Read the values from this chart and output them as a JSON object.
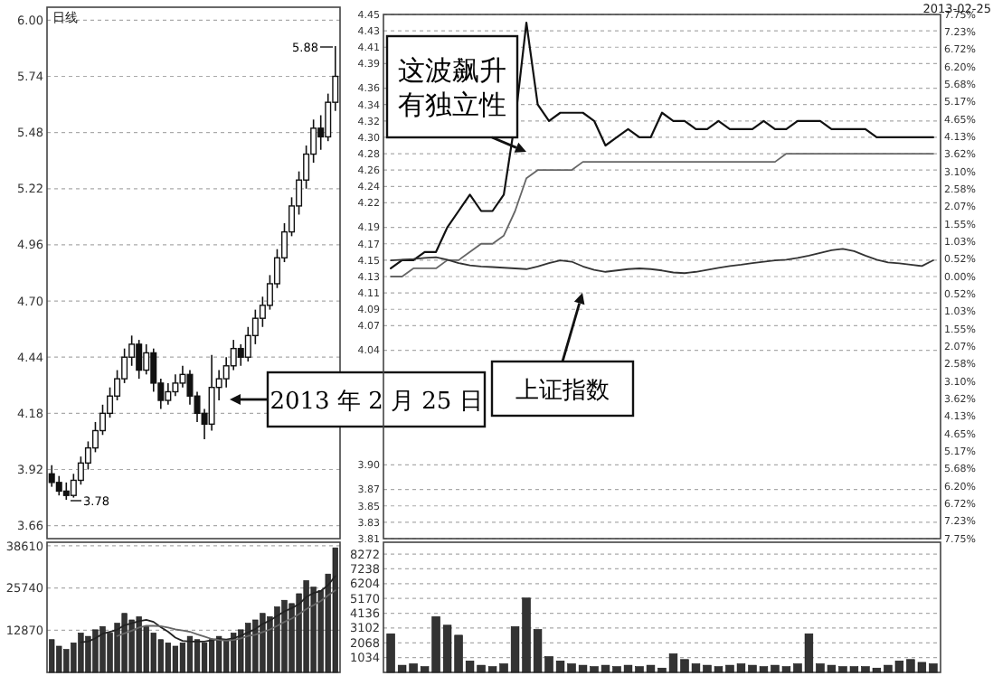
{
  "chart_data": [
    {
      "type": "candlestick",
      "title": "日线",
      "categories": [
        null,
        null,
        null,
        null,
        null,
        null,
        null,
        null,
        null,
        null,
        null,
        null,
        null,
        null,
        null,
        null,
        null,
        null,
        null,
        null,
        null,
        null,
        null,
        null,
        null,
        null,
        null,
        null,
        null,
        null,
        null,
        null,
        null,
        null,
        null,
        null,
        null,
        null,
        null,
        null
      ],
      "ohlc": [
        [
          3.9,
          3.94,
          3.84,
          3.86
        ],
        [
          3.86,
          3.89,
          3.8,
          3.82
        ],
        [
          3.82,
          3.86,
          3.78,
          3.8
        ],
        [
          3.8,
          3.9,
          3.79,
          3.87
        ],
        [
          3.87,
          3.98,
          3.85,
          3.95
        ],
        [
          3.95,
          4.05,
          3.92,
          4.02
        ],
        [
          4.02,
          4.14,
          4.0,
          4.1
        ],
        [
          4.1,
          4.22,
          4.08,
          4.18
        ],
        [
          4.18,
          4.3,
          4.16,
          4.26
        ],
        [
          4.26,
          4.38,
          4.24,
          4.34
        ],
        [
          4.34,
          4.48,
          4.32,
          4.44
        ],
        [
          4.44,
          4.54,
          4.4,
          4.5
        ],
        [
          4.5,
          4.52,
          4.34,
          4.38
        ],
        [
          4.38,
          4.5,
          4.36,
          4.46
        ],
        [
          4.46,
          4.48,
          4.28,
          4.32
        ],
        [
          4.32,
          4.34,
          4.2,
          4.24
        ],
        [
          4.24,
          4.32,
          4.22,
          4.28
        ],
        [
          4.28,
          4.36,
          4.26,
          4.32
        ],
        [
          4.32,
          4.4,
          4.3,
          4.36
        ],
        [
          4.36,
          4.38,
          4.22,
          4.26
        ],
        [
          4.26,
          4.28,
          4.14,
          4.18
        ],
        [
          4.18,
          4.2,
          4.06,
          4.13
        ],
        [
          4.13,
          4.45,
          4.1,
          4.3
        ],
        [
          4.3,
          4.38,
          4.24,
          4.34
        ],
        [
          4.34,
          4.44,
          4.3,
          4.4
        ],
        [
          4.4,
          4.52,
          4.38,
          4.48
        ],
        [
          4.48,
          4.5,
          4.4,
          4.44
        ],
        [
          4.44,
          4.58,
          4.42,
          4.54
        ],
        [
          4.54,
          4.66,
          4.5,
          4.62
        ],
        [
          4.62,
          4.72,
          4.58,
          4.68
        ],
        [
          4.68,
          4.82,
          4.66,
          4.78
        ],
        [
          4.78,
          4.94,
          4.76,
          4.9
        ],
        [
          4.9,
          5.06,
          4.88,
          5.02
        ],
        [
          5.02,
          5.18,
          5.0,
          5.14
        ],
        [
          5.14,
          5.3,
          5.1,
          5.26
        ],
        [
          5.26,
          5.42,
          5.22,
          5.38
        ],
        [
          5.38,
          5.54,
          5.34,
          5.5
        ],
        [
          5.5,
          5.56,
          5.4,
          5.46
        ],
        [
          5.46,
          5.66,
          5.44,
          5.62
        ],
        [
          5.62,
          5.88,
          5.58,
          5.74
        ]
      ],
      "ylim": [
        3.6,
        6.06
      ],
      "yticks": [
        3.66,
        3.92,
        4.18,
        4.44,
        {
          "value": 4.7,
          "label": "4.70"
        },
        4.96,
        5.22,
        5.48,
        5.74,
        {
          "value": 6.0,
          "label": "6.00"
        }
      ],
      "grid": true,
      "annotations": [
        "2013 年 2 月 25 日",
        "5.88",
        "3.78"
      ]
    },
    {
      "type": "bar",
      "categories": [
        null,
        null,
        null,
        null,
        null,
        null,
        null,
        null,
        null,
        null,
        null,
        null,
        null,
        null,
        null,
        null,
        null,
        null,
        null,
        null,
        null,
        null,
        null,
        null,
        null,
        null,
        null,
        null,
        null,
        null,
        null,
        null,
        null,
        null,
        null,
        null,
        null,
        null,
        null,
        null
      ],
      "series": [
        {
          "color": "#333333",
          "values": [
            10000,
            8000,
            7000,
            9000,
            12000,
            11000,
            13000,
            14000,
            12000,
            15000,
            18000,
            16000,
            17000,
            14000,
            12000,
            10000,
            9000,
            8000,
            9000,
            11000,
            10000,
            9000,
            10000,
            11000,
            10000,
            12000,
            13000,
            15000,
            16000,
            18000,
            17000,
            20000,
            22000,
            21000,
            24000,
            28000,
            26000,
            25000,
            30000,
            38000
          ]
        },
        {
          "type": "line",
          "color": "#222222",
          "values": [
            null,
            null,
            null,
            null,
            9200,
            9400,
            10400,
            11800,
            12400,
            13000,
            14400,
            15000,
            15600,
            16000,
            15400,
            13800,
            12400,
            10600,
            9600,
            9400,
            9400,
            9400,
            9800,
            10200,
            10000,
            10400,
            11200,
            12200,
            13200,
            14800,
            15800,
            17200,
            18600,
            19600,
            20800,
            23000,
            24200,
            24800,
            26600,
            29400
          ]
        },
        {
          "type": "line",
          "color": "#666666",
          "values": [
            null,
            null,
            null,
            null,
            null,
            null,
            null,
            null,
            null,
            11100,
            11900,
            12700,
            13700,
            14200,
            14200,
            14100,
            13700,
            13100,
            12800,
            12400,
            11600,
            10900,
            10200,
            9900,
            9700,
            9900,
            10400,
            11100,
            11500,
            12300,
            13100,
            14200,
            15400,
            16400,
            17800,
            19300,
            20500,
            21800,
            23500,
            25000
          ]
        }
      ],
      "ylim": [
        0,
        39700
      ],
      "yticks": [
        12870,
        25740,
        38610
      ],
      "grid": true
    },
    {
      "type": "line",
      "subtitle": "2013-02-25",
      "categories": [
        null,
        null,
        null,
        null,
        null,
        null,
        null,
        null,
        null,
        null,
        null,
        null,
        null,
        null,
        null,
        null,
        null,
        null,
        null,
        null,
        null,
        null,
        null,
        null,
        null,
        null,
        null,
        null,
        null,
        null,
        null,
        null,
        null,
        null,
        null,
        null,
        null,
        null,
        null,
        null,
        null,
        null,
        null,
        null,
        null,
        null,
        null,
        null,
        null
      ],
      "ylim": [
        3.81,
        4.45
      ],
      "yticks": [
        3.81,
        3.83,
        3.85,
        3.87,
        {
          "value": 3.9,
          "label": "3.90"
        },
        4.04,
        4.07,
        4.09,
        4.11,
        4.13,
        4.15,
        4.17,
        4.19,
        4.22,
        4.24,
        4.26,
        4.28,
        {
          "value": 4.3,
          "label": "4.30"
        },
        4.32,
        4.34,
        4.36,
        4.39,
        4.41,
        4.43,
        4.45
      ],
      "y2lim": [
        -7.75,
        7.75
      ],
      "y2ticks": [
        {
          "value": -7.75,
          "label": "7.75%"
        },
        {
          "value": -7.23,
          "label": "7.23%"
        },
        {
          "value": -6.72,
          "label": "6.72%"
        },
        {
          "value": -6.2,
          "label": "6.20%"
        },
        {
          "value": -5.68,
          "label": "5.68%"
        },
        {
          "value": -5.17,
          "label": "5.17%"
        },
        {
          "value": -4.65,
          "label": "4.65%"
        },
        {
          "value": -4.13,
          "label": "4.13%"
        },
        {
          "value": -3.62,
          "label": "3.62%"
        },
        {
          "value": -3.1,
          "label": "3.10%"
        },
        {
          "value": -2.58,
          "label": "2.58%"
        },
        {
          "value": -2.07,
          "label": "2.07%"
        },
        {
          "value": -1.55,
          "label": "1.55%"
        },
        {
          "value": -1.03,
          "label": "1.03%"
        },
        {
          "value": -0.52,
          "label": "0.52%"
        },
        {
          "value": 0,
          "label": "0.00%"
        },
        {
          "value": 0.52,
          "label": "0.52%"
        },
        {
          "value": 1.03,
          "label": "1.03%"
        },
        {
          "value": 1.55,
          "label": "1.55%"
        },
        {
          "value": 2.07,
          "label": "2.07%"
        },
        {
          "value": 2.58,
          "label": "2.58%"
        },
        {
          "value": 3.1,
          "label": "3.10%"
        },
        {
          "value": 3.62,
          "label": "3.62%"
        },
        {
          "value": 4.13,
          "label": "4.13%"
        },
        {
          "value": 4.65,
          "label": "4.65%"
        },
        {
          "value": 5.17,
          "label": "5.17%"
        },
        {
          "value": 5.68,
          "label": "5.68%"
        },
        {
          "value": 6.2,
          "label": "6.20%"
        },
        {
          "value": 6.72,
          "label": "6.72%"
        },
        {
          "value": 7.23,
          "label": "7.23%"
        },
        {
          "value": 7.75,
          "label": "7.75%"
        }
      ],
      "grid": "y",
      "series": [
        {
          "color": "#111111",
          "values": [
            4.14,
            4.15,
            4.15,
            4.16,
            4.16,
            4.19,
            4.21,
            4.23,
            4.21,
            4.21,
            4.23,
            4.32,
            4.44,
            4.34,
            4.32,
            4.33,
            4.33,
            4.33,
            4.32,
            4.29,
            4.3,
            4.31,
            4.3,
            4.3,
            4.33,
            4.32,
            4.32,
            4.31,
            4.31,
            4.32,
            4.31,
            4.31,
            4.31,
            4.32,
            4.31,
            4.31,
            4.32,
            4.32,
            4.32,
            4.31,
            4.31,
            4.31,
            4.31,
            4.3,
            4.3,
            4.3,
            4.3,
            4.3,
            4.3
          ]
        },
        {
          "color": "#666666",
          "values": [
            4.13,
            4.13,
            4.14,
            4.14,
            4.14,
            4.15,
            4.15,
            4.16,
            4.17,
            4.17,
            4.18,
            4.21,
            4.25,
            4.26,
            4.26,
            4.26,
            4.26,
            4.27,
            4.27,
            4.27,
            4.27,
            4.27,
            4.27,
            4.27,
            4.27,
            4.27,
            4.27,
            4.27,
            4.27,
            4.27,
            4.27,
            4.27,
            4.27,
            4.27,
            4.27,
            4.28,
            4.28,
            4.28,
            4.28,
            4.28,
            4.28,
            4.28,
            4.28,
            4.28,
            4.28,
            4.28,
            4.28,
            4.28,
            4.28
          ]
        },
        {
          "color": "#333333",
          "axis": "y2",
          "values": [
            0.48,
            0.5,
            0.52,
            0.55,
            0.57,
            0.5,
            0.4,
            0.33,
            0.3,
            0.28,
            0.26,
            0.24,
            0.22,
            0.3,
            0.4,
            0.48,
            0.44,
            0.3,
            0.2,
            0.14,
            0.18,
            0.22,
            0.24,
            0.22,
            0.18,
            0.12,
            0.1,
            0.14,
            0.2,
            0.26,
            0.31,
            0.35,
            0.4,
            0.44,
            0.48,
            0.5,
            0.55,
            0.62,
            0.7,
            0.78,
            0.82,
            0.75,
            0.62,
            0.5,
            0.42,
            0.39,
            0.35,
            0.31,
            0.48
          ]
        }
      ],
      "annotations": [
        "这波飙升有独立性",
        "上证指数"
      ]
    },
    {
      "type": "bar",
      "categories": [
        null,
        null,
        null,
        null,
        null,
        null,
        null,
        null,
        null,
        null,
        null,
        null,
        null,
        null,
        null,
        null,
        null,
        null,
        null,
        null,
        null,
        null,
        null,
        null,
        null,
        null,
        null,
        null,
        null,
        null,
        null,
        null,
        null,
        null,
        null,
        null,
        null,
        null,
        null,
        null,
        null,
        null,
        null,
        null,
        null,
        null,
        null,
        null,
        null
      ],
      "ylim": [
        0,
        9100
      ],
      "yticks": [
        1034,
        2068,
        3102,
        4136,
        5170,
        6204,
        7238,
        8272
      ],
      "grid": "y",
      "values": [
        2700,
        500,
        600,
        400,
        3900,
        3300,
        2600,
        800,
        500,
        400,
        600,
        3200,
        5200,
        3000,
        1100,
        800,
        600,
        500,
        400,
        500,
        400,
        500,
        400,
        500,
        300,
        1300,
        900,
        600,
        500,
        400,
        500,
        600,
        500,
        400,
        500,
        400,
        600,
        2700,
        600,
        500,
        400,
        400,
        400,
        300,
        500,
        800,
        900,
        700,
        600
      ],
      "color": "#333333"
    }
  ]
}
